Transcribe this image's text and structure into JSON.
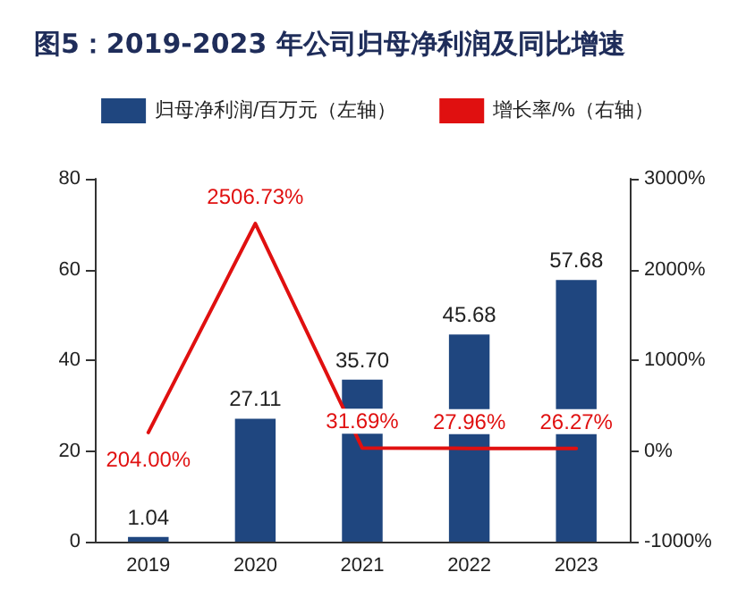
{
  "chart_data": {
    "type": "bar",
    "title": "图5：2019-2023 年公司归母净利润及同比增速",
    "categories": [
      "2019",
      "2020",
      "2021",
      "2022",
      "2023"
    ],
    "series": [
      {
        "name": "归母净利润/百万元（左轴）",
        "color": "#1f467f",
        "values": [
          1.04,
          27.11,
          35.7,
          45.68,
          57.68
        ],
        "value_labels": [
          "1.04",
          "27.11",
          "35.70",
          "45.68",
          "57.68"
        ]
      },
      {
        "name": "增长率/%（右轴）",
        "type": "line",
        "axis": "y2",
        "color": "#e01010",
        "values": [
          204.0,
          2506.73,
          31.69,
          27.96,
          26.27
        ],
        "value_labels": [
          "204.00%",
          "2506.73%",
          "31.69%",
          "27.96%",
          "26.27%"
        ]
      }
    ],
    "ylim": [
      0,
      80
    ],
    "yticks": [
      0,
      20,
      40,
      60,
      80
    ],
    "y2lim": [
      -1000,
      3000
    ],
    "y2ticks": [
      {
        "value": -1000,
        "label": "-1000%"
      },
      {
        "value": 0,
        "label": "0%"
      },
      {
        "value": 1000,
        "label": "1000%"
      },
      {
        "value": 2000,
        "label": "2000%"
      },
      {
        "value": 3000,
        "label": "3000%"
      }
    ],
    "legend": "top",
    "grid": false,
    "marker": "none",
    "line_style": "solid"
  }
}
